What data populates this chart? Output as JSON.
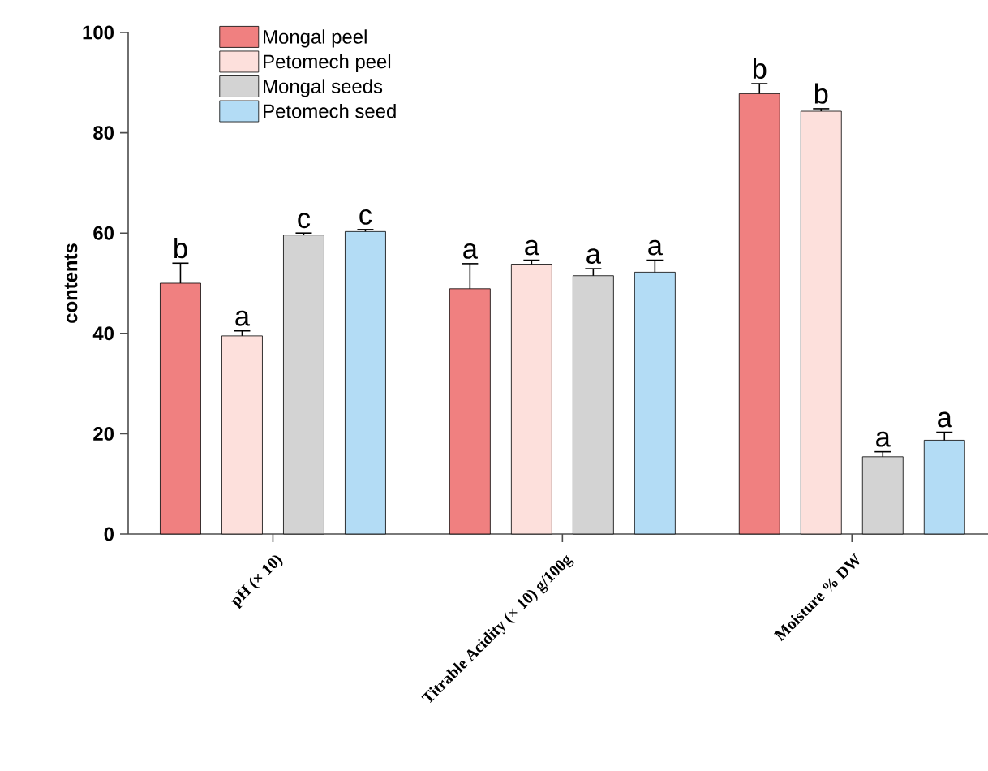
{
  "chart_data": {
    "type": "bar",
    "ylabel": "contents",
    "categories": [
      "pH (× 10)",
      "Titrable Acidity (× 10) g/100g",
      "Moisture % DW"
    ],
    "series": [
      {
        "name": "Mongal peel",
        "color": "#f08080",
        "values": [
          50,
          48.9,
          87.8
        ],
        "errors": [
          4,
          5,
          2
        ]
      },
      {
        "name": "Petomech peel",
        "color": "#fde0dc",
        "values": [
          39.5,
          53.8,
          84.3
        ],
        "errors": [
          1,
          0.8,
          0.5
        ]
      },
      {
        "name": "Mongal seeds",
        "color": "#d3d3d3",
        "values": [
          59.6,
          51.5,
          15.4
        ],
        "errors": [
          0.4,
          1.4,
          1
        ]
      },
      {
        "name": "Petomech seed",
        "color": "#b3dcf5",
        "values": [
          60.3,
          52.2,
          18.7
        ],
        "errors": [
          0.4,
          2.4,
          1.6
        ]
      }
    ],
    "ylim": [
      0,
      100
    ],
    "yticks": [
      0,
      20,
      40,
      60,
      80,
      100
    ],
    "grid": false,
    "legend": "top left",
    "annotations": [
      "b",
      "a",
      "c",
      "c",
      "a",
      "a",
      "a",
      "a",
      "b",
      "b",
      "a",
      "a"
    ]
  }
}
